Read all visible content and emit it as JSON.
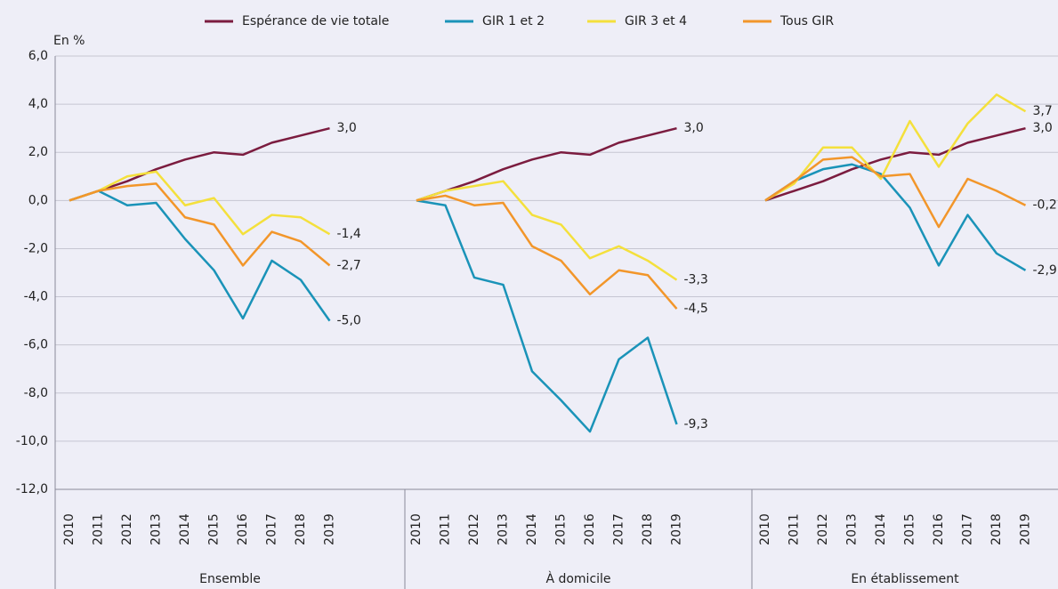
{
  "chart_data": {
    "type": "line",
    "y_label": "En %",
    "ylim": [
      -12,
      6
    ],
    "yticks": [
      {
        "value": -12,
        "label": "-12,0"
      },
      {
        "value": -10,
        "label": "-10,0"
      },
      {
        "value": -8,
        "label": "-8,0"
      },
      {
        "value": -6,
        "label": "-6,0"
      },
      {
        "value": -4,
        "label": "-4,0"
      },
      {
        "value": -2,
        "label": "-2,0"
      },
      {
        "value": 0,
        "label": "0,0"
      },
      {
        "value": 2,
        "label": "2,0"
      },
      {
        "value": 4,
        "label": "4,0"
      },
      {
        "value": 6,
        "label": "6,0"
      }
    ],
    "grid": true,
    "panels": [
      "Ensemble",
      "À domicile",
      "En établissement"
    ],
    "categories": [
      "2010",
      "2011",
      "2012",
      "2013",
      "2014",
      "2015",
      "2016",
      "2017",
      "2018",
      "2019"
    ],
    "series": [
      {
        "name": "Espérance de vie totale",
        "color": "#7b1c3f",
        "values": [
          [
            0,
            0.4,
            0.8,
            1.3,
            1.7,
            2.0,
            1.9,
            2.4,
            2.7,
            3.0
          ],
          [
            0,
            0.4,
            0.8,
            1.3,
            1.7,
            2.0,
            1.9,
            2.4,
            2.7,
            3.0
          ],
          [
            0,
            0.4,
            0.8,
            1.3,
            1.7,
            2.0,
            1.9,
            2.4,
            2.7,
            3.0
          ]
        ],
        "value_labels": [
          [
            null,
            null,
            null,
            null,
            null,
            null,
            null,
            null,
            null,
            "3,0"
          ],
          [
            null,
            null,
            null,
            null,
            null,
            null,
            null,
            null,
            null,
            "3,0"
          ],
          [
            null,
            null,
            null,
            null,
            null,
            null,
            null,
            null,
            null,
            "3,0"
          ]
        ]
      },
      {
        "name": "GIR 1 et 2",
        "color": "#1a93b8",
        "values": [
          [
            0,
            0.4,
            -0.2,
            -0.1,
            -1.6,
            -2.9,
            -4.9,
            -2.5,
            -3.3,
            -5.0
          ],
          [
            0,
            -0.2,
            -3.2,
            -3.5,
            -7.1,
            -8.3,
            -9.6,
            -6.6,
            -5.7,
            -9.3
          ],
          [
            0,
            0.8,
            1.3,
            1.5,
            1.1,
            -0.3,
            -2.7,
            -0.6,
            -2.2,
            -2.9
          ]
        ],
        "value_labels": [
          [
            null,
            null,
            null,
            null,
            null,
            null,
            null,
            null,
            null,
            "-5,0"
          ],
          [
            null,
            null,
            null,
            null,
            null,
            null,
            null,
            null,
            null,
            "-9,3"
          ],
          [
            null,
            null,
            null,
            null,
            null,
            null,
            null,
            null,
            null,
            "-2,9"
          ]
        ]
      },
      {
        "name": "GIR 3 et 4",
        "color": "#f4e03c",
        "values": [
          [
            0,
            0.4,
            1.0,
            1.2,
            -0.2,
            0.1,
            -1.4,
            -0.6,
            -0.7,
            -1.4
          ],
          [
            0,
            0.4,
            0.6,
            0.8,
            -0.6,
            -1.0,
            -2.4,
            -1.9,
            -2.5,
            -3.3
          ],
          [
            0,
            0.7,
            2.2,
            2.2,
            0.9,
            3.3,
            1.4,
            3.2,
            4.4,
            3.7
          ]
        ],
        "value_labels": [
          [
            null,
            null,
            null,
            null,
            null,
            null,
            null,
            null,
            null,
            "-1,4"
          ],
          [
            null,
            null,
            null,
            null,
            null,
            null,
            null,
            null,
            null,
            "-3,3"
          ],
          [
            null,
            null,
            null,
            null,
            null,
            null,
            null,
            null,
            null,
            "3,7"
          ]
        ]
      },
      {
        "name": "Tous GIR",
        "color": "#f2962a",
        "values": [
          [
            0,
            0.4,
            0.6,
            0.7,
            -0.7,
            -1.0,
            -2.7,
            -1.3,
            -1.7,
            -2.7
          ],
          [
            0,
            0.2,
            -0.2,
            -0.1,
            -1.9,
            -2.5,
            -3.9,
            -2.9,
            -3.1,
            -4.5
          ],
          [
            0,
            0.8,
            1.7,
            1.8,
            1.0,
            1.1,
            -1.1,
            0.9,
            0.4,
            -0.2
          ]
        ],
        "value_labels": [
          [
            null,
            null,
            null,
            null,
            null,
            null,
            null,
            null,
            null,
            "-2,7"
          ],
          [
            null,
            null,
            null,
            null,
            null,
            null,
            null,
            null,
            null,
            "-4,5"
          ],
          [
            null,
            null,
            null,
            null,
            null,
            null,
            null,
            null,
            null,
            "-0,2"
          ]
        ]
      }
    ]
  }
}
